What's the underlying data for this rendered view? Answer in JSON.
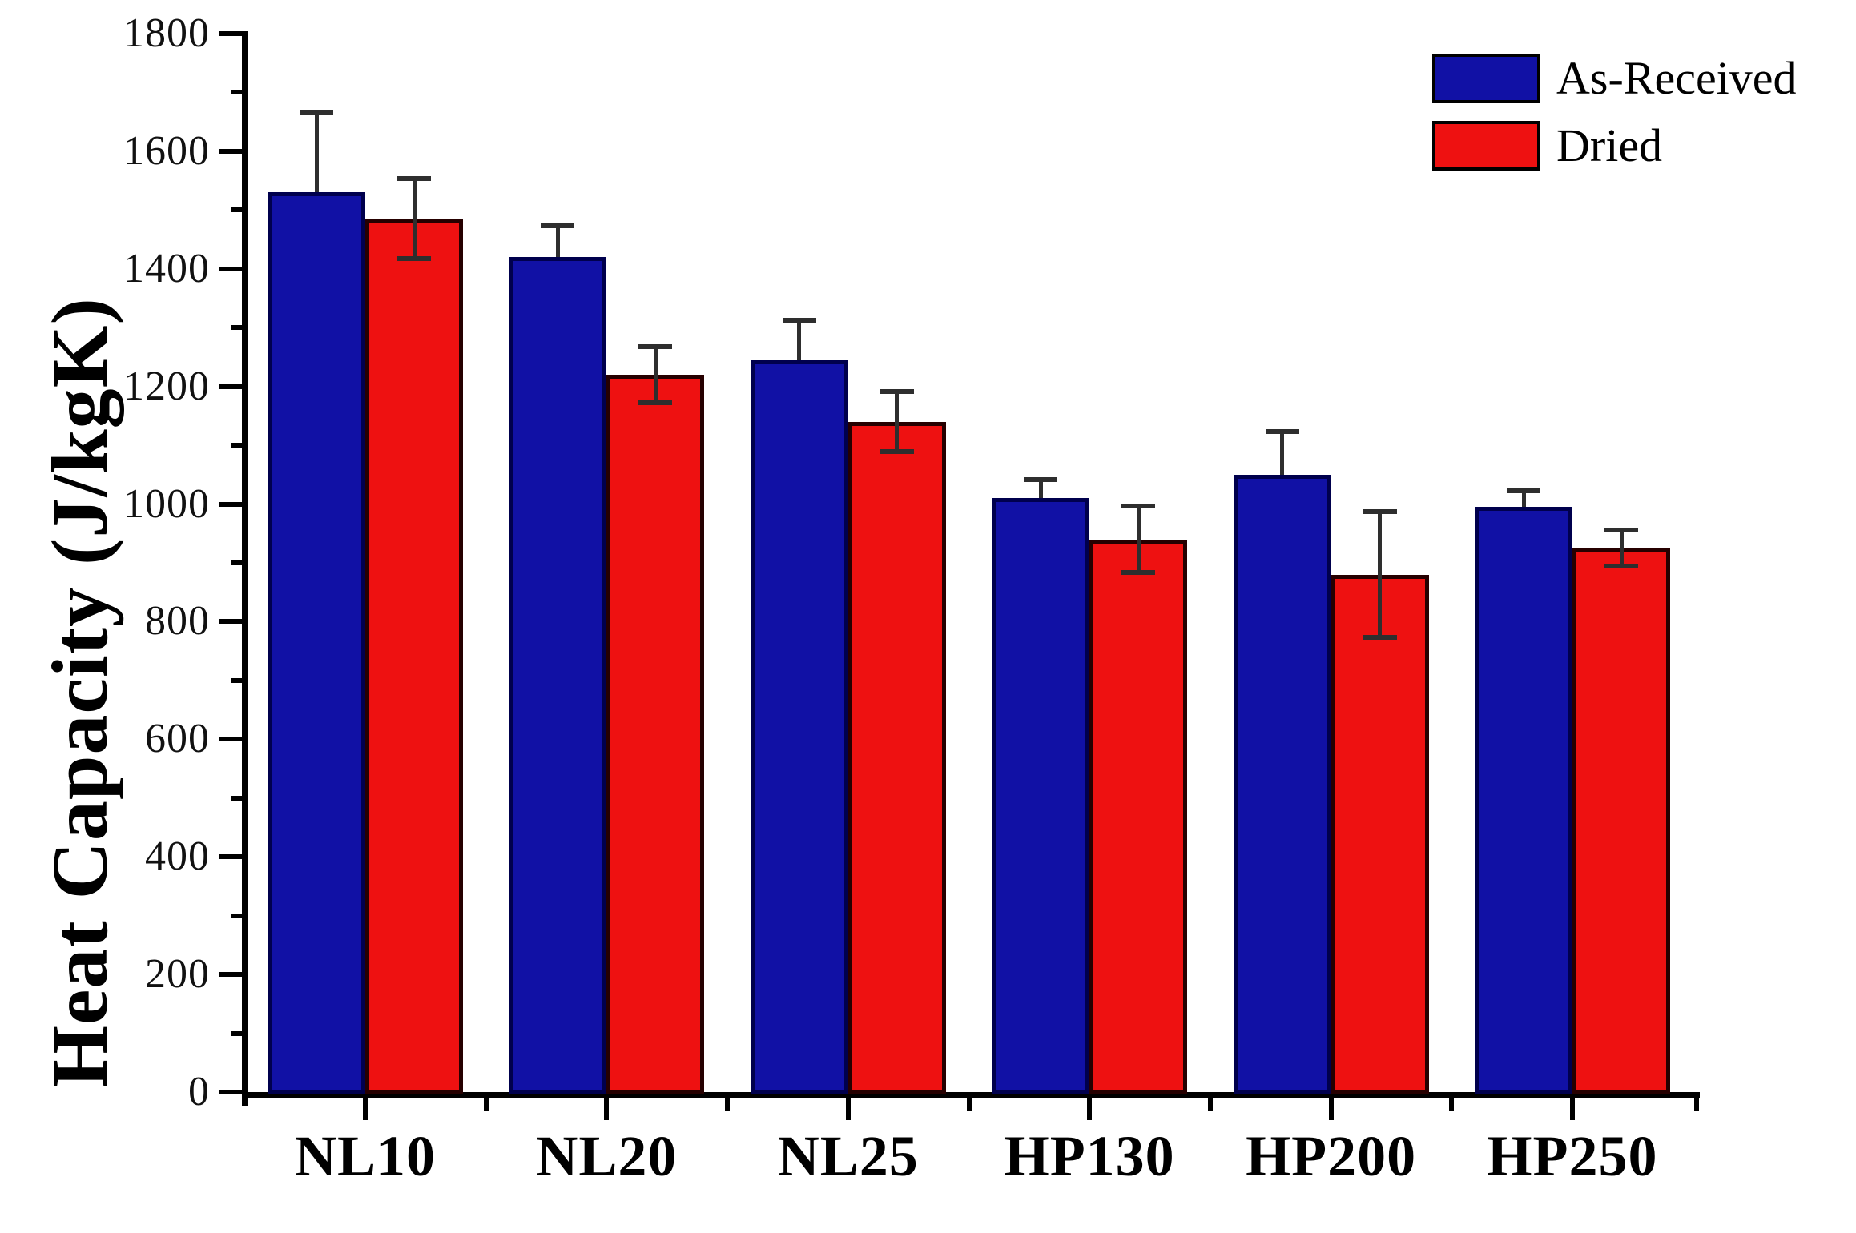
{
  "chart_data": {
    "type": "bar",
    "title": "",
    "xlabel": "",
    "ylabel": "Heat Capacity (J/kgK)",
    "ylim": [
      0,
      1800
    ],
    "y_major_step": 200,
    "y_minor_step": 100,
    "grid": false,
    "legend_position": "top-right",
    "background": "#FFFFFF",
    "axis_color": "#000000",
    "text_color": "#111111",
    "error_bar_color": "#2E2E2E",
    "categories": [
      "NL10",
      "NL20",
      "NL25",
      "HP130",
      "HP200",
      "HP250"
    ],
    "series": [
      {
        "name": "As-Received",
        "color": "#1111A5",
        "edge_color": "#00004D",
        "error_style": "upper",
        "values": [
          1530,
          1420,
          1245,
          1010,
          1050,
          995
        ],
        "errors": [
          135,
          53,
          67,
          32,
          73,
          27
        ]
      },
      {
        "name": "Dried",
        "color": "#EE1111",
        "edge_color": "#260000",
        "error_style": "symmetric",
        "values": [
          1485,
          1220,
          1140,
          940,
          880,
          925
        ],
        "errors": [
          68,
          48,
          51,
          56,
          107,
          31
        ]
      }
    ]
  }
}
